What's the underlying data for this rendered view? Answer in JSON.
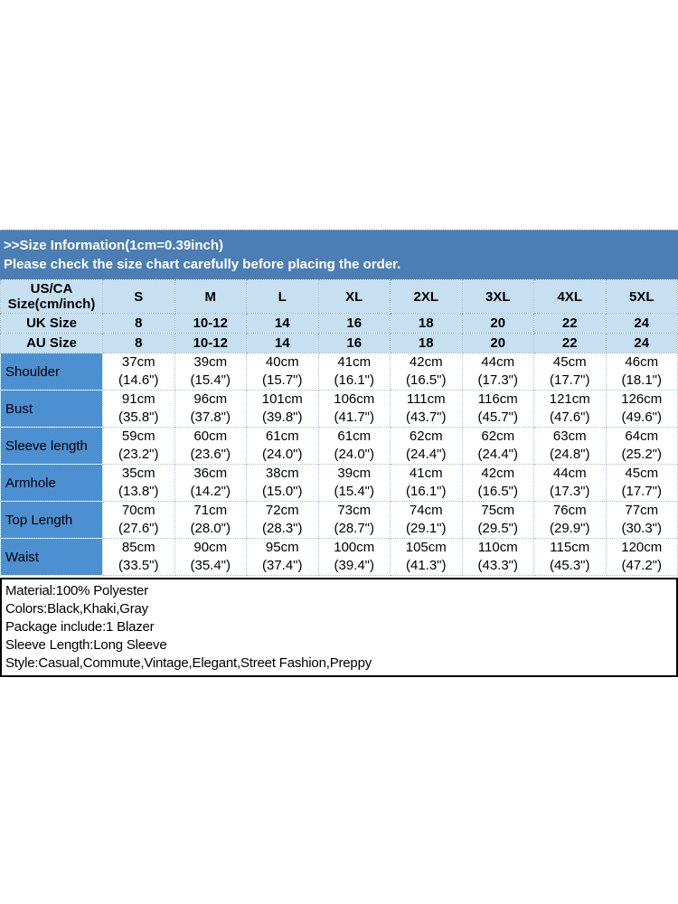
{
  "colors": {
    "banner_blue": "#4b7eb4",
    "header_light_blue": "#c6dff1",
    "row_label_blue": "#4c90d2",
    "grid_dotted_line": "#a6c0d8",
    "info_border": "#000000",
    "banner_text": "#ffffff",
    "table_text": "#000000"
  },
  "banner": {
    "line1": ">>Size Information(1cm=0.39inch)",
    "line2": "Please check the size chart carefully before placing the order."
  },
  "size_chart": {
    "corner_header": "US/CA\nSize(cm/inch)",
    "size_labels": [
      "S",
      "M",
      "L",
      "XL",
      "2XL",
      "3XL",
      "4XL",
      "5XL"
    ],
    "uk_row": {
      "label": "UK Size",
      "values": [
        "8",
        "10-12",
        "14",
        "16",
        "18",
        "20",
        "22",
        "24"
      ]
    },
    "au_row": {
      "label": "AU Size",
      "values": [
        "8",
        "10-12",
        "14",
        "16",
        "18",
        "20",
        "22",
        "24"
      ]
    },
    "measurements": [
      {
        "label": "Shoulder",
        "cells": [
          "37cm\n(14.6\")",
          "39cm\n(15.4\")",
          "40cm\n(15.7\")",
          "41cm\n(16.1\")",
          "42cm\n(16.5\")",
          "44cm\n(17.3\")",
          "45cm\n(17.7\")",
          "46cm\n(18.1\")"
        ]
      },
      {
        "label": "Bust",
        "cells": [
          "91cm\n(35.8\")",
          "96cm\n(37.8\")",
          "101cm\n(39.8\")",
          "106cm\n(41.7\")",
          "111cm\n(43.7\")",
          "116cm\n(45.7\")",
          "121cm\n(47.6\")",
          "126cm\n(49.6\")"
        ]
      },
      {
        "label": "Sleeve length",
        "cells": [
          "59cm\n(23.2\")",
          "60cm\n(23.6\")",
          "61cm\n(24.0\")",
          "61cm\n(24.0\")",
          "62cm\n(24.4\")",
          "62cm\n(24.4\")",
          "63cm\n(24.8\")",
          "64cm\n(25.2\")"
        ]
      },
      {
        "label": "Armhole",
        "cells": [
          "35cm\n(13.8\")",
          "36cm\n(14.2\")",
          "38cm\n(15.0\")",
          "39cm\n(15.4\")",
          "41cm\n(16.1\")",
          "42cm\n(16.5\")",
          "44cm\n(17.3\")",
          "45cm\n(17.7\")"
        ]
      },
      {
        "label": "Top Length",
        "cells": [
          "70cm\n(27.6\")",
          "71cm\n(28.0\")",
          "72cm\n(28.3\")",
          "73cm\n(28.7\")",
          "74cm\n(29.1\")",
          "75cm\n(29.5\")",
          "76cm\n(29.9\")",
          "77cm\n(30.3\")"
        ]
      },
      {
        "label": "Waist",
        "cells": [
          "85cm\n(33.5\")",
          "90cm\n(35.4\")",
          "95cm\n(37.4\")",
          "100cm\n(39.4\")",
          "105cm\n(41.3\")",
          "110cm\n(43.3\")",
          "115cm\n(45.3\")",
          "120cm\n(47.2\")"
        ]
      }
    ]
  },
  "product_info": {
    "lines": [
      "Material:100% Polyester",
      "Colors:Black,Khaki,Gray",
      "Package include:1 Blazer",
      "Sleeve Length:Long Sleeve",
      "Style:Casual,Commute,Vintage,Elegant,Street Fashion,Preppy"
    ]
  }
}
